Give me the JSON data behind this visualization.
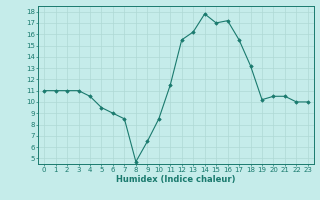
{
  "x": [
    0,
    1,
    2,
    3,
    4,
    5,
    6,
    7,
    8,
    9,
    10,
    11,
    12,
    13,
    14,
    15,
    16,
    17,
    18,
    19,
    20,
    21,
    22,
    23
  ],
  "y": [
    11,
    11,
    11,
    11,
    10.5,
    9.5,
    9,
    8.5,
    4.7,
    6.5,
    8.5,
    11.5,
    15.5,
    16.2,
    17.8,
    17,
    17.2,
    15.5,
    13.2,
    10.2,
    10.5,
    10.5,
    10,
    10
  ],
  "line_color": "#1a7a6e",
  "marker": "D",
  "marker_size": 1.8,
  "bg_color": "#c5ecea",
  "grid_color": "#afd9d5",
  "xlabel": "Humidex (Indice chaleur)",
  "xlim": [
    -0.5,
    23.5
  ],
  "ylim": [
    4.5,
    18.5
  ],
  "yticks": [
    5,
    6,
    7,
    8,
    9,
    10,
    11,
    12,
    13,
    14,
    15,
    16,
    17,
    18
  ],
  "xticks": [
    0,
    1,
    2,
    3,
    4,
    5,
    6,
    7,
    8,
    9,
    10,
    11,
    12,
    13,
    14,
    15,
    16,
    17,
    18,
    19,
    20,
    21,
    22,
    23
  ],
  "axis_color": "#1a7a6e",
  "tick_color": "#1a7a6e",
  "label_color": "#1a7a6e",
  "tick_fontsize": 5.0,
  "xlabel_fontsize": 6.0
}
